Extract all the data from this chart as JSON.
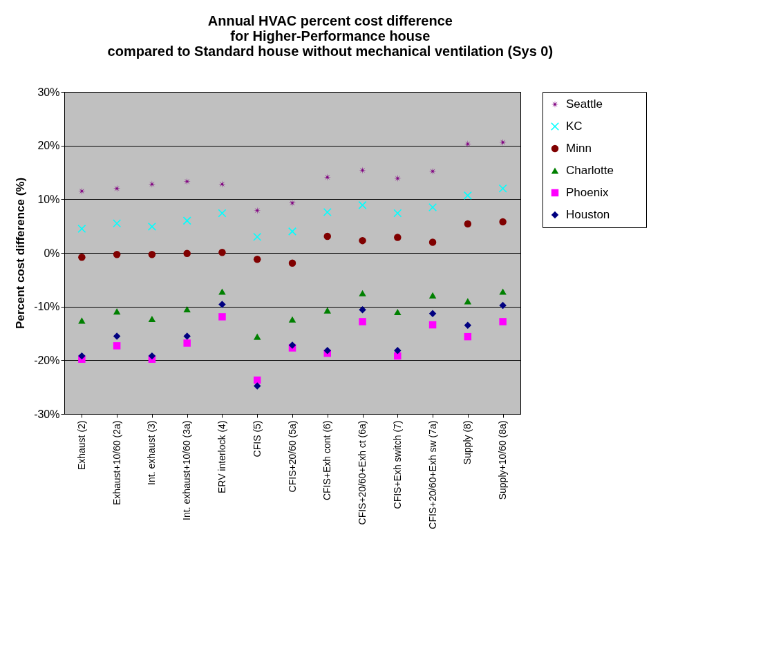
{
  "chart_data": {
    "type": "scatter",
    "title": [
      "Annual HVAC percent cost difference",
      "for Higher-Performance house",
      "compared to Standard house without mechanical ventilation (Sys 0)"
    ],
    "ylabel": "Percent cost difference (%)",
    "categories": [
      "Exhaust (2)",
      "Exhaust+10/60 (2a)",
      "Int. exhaust (3)",
      "Int. exhaust+10/60 (3a)",
      "ERV interlock (4)",
      "CFIS (5)",
      "CFIS+20/60 (5a)",
      "CFIS+Exh cont (6)",
      "CFIS+20/60+Exh ct (6a)",
      "CFIS+Exh switch (7)",
      "CFIS+20/60+Exh sw (7a)",
      "Supply (8)",
      "Supply+10/60 (8a)"
    ],
    "series": [
      {
        "name": "Seattle",
        "color": "#800080",
        "marker": "star",
        "values": [
          11.5,
          12.0,
          12.8,
          13.3,
          12.8,
          7.9,
          9.3,
          14.1,
          15.4,
          13.9,
          15.2,
          20.3,
          20.6
        ]
      },
      {
        "name": "KC",
        "color": "#00ffff",
        "marker": "cross",
        "values": [
          4.5,
          5.5,
          4.9,
          6.0,
          7.4,
          3.0,
          4.0,
          7.6,
          8.9,
          7.4,
          8.5,
          10.7,
          12.0
        ]
      },
      {
        "name": "Minn",
        "color": "#800000",
        "marker": "circle",
        "values": [
          -0.8,
          -0.3,
          -0.3,
          -0.1,
          0.1,
          -1.2,
          -1.9,
          3.1,
          2.3,
          2.9,
          2.0,
          5.4,
          5.8
        ]
      },
      {
        "name": "Charlotte",
        "color": "#008000",
        "marker": "triangle",
        "values": [
          -12.6,
          -10.9,
          -12.3,
          -10.5,
          -7.2,
          -15.6,
          -12.4,
          -10.7,
          -7.5,
          -11.0,
          -7.9,
          -9.0,
          -7.2
        ]
      },
      {
        "name": "Phoenix",
        "color": "#ff00ff",
        "marker": "square",
        "values": [
          -19.8,
          -17.3,
          -19.8,
          -16.8,
          -11.9,
          -23.7,
          -17.7,
          -18.7,
          -12.8,
          -19.2,
          -13.4,
          -15.6,
          -12.8
        ]
      },
      {
        "name": "Houston",
        "color": "#000080",
        "marker": "diamond",
        "values": [
          -19.2,
          -15.5,
          -19.2,
          -15.5,
          -9.6,
          -24.8,
          -17.2,
          -18.2,
          -10.6,
          -18.2,
          -11.3,
          -13.5,
          -9.8
        ]
      }
    ],
    "ylim": [
      -30,
      30
    ],
    "yticks": [
      {
        "value": -30,
        "label": "-30%"
      },
      {
        "value": -20,
        "label": "-20%"
      },
      {
        "value": -10,
        "label": "-10%"
      },
      {
        "value": 0,
        "label": "0%"
      },
      {
        "value": 10,
        "label": "10%"
      },
      {
        "value": 20,
        "label": "20%"
      },
      {
        "value": 30,
        "label": "30%"
      }
    ],
    "grid": "y",
    "legend": "right"
  }
}
